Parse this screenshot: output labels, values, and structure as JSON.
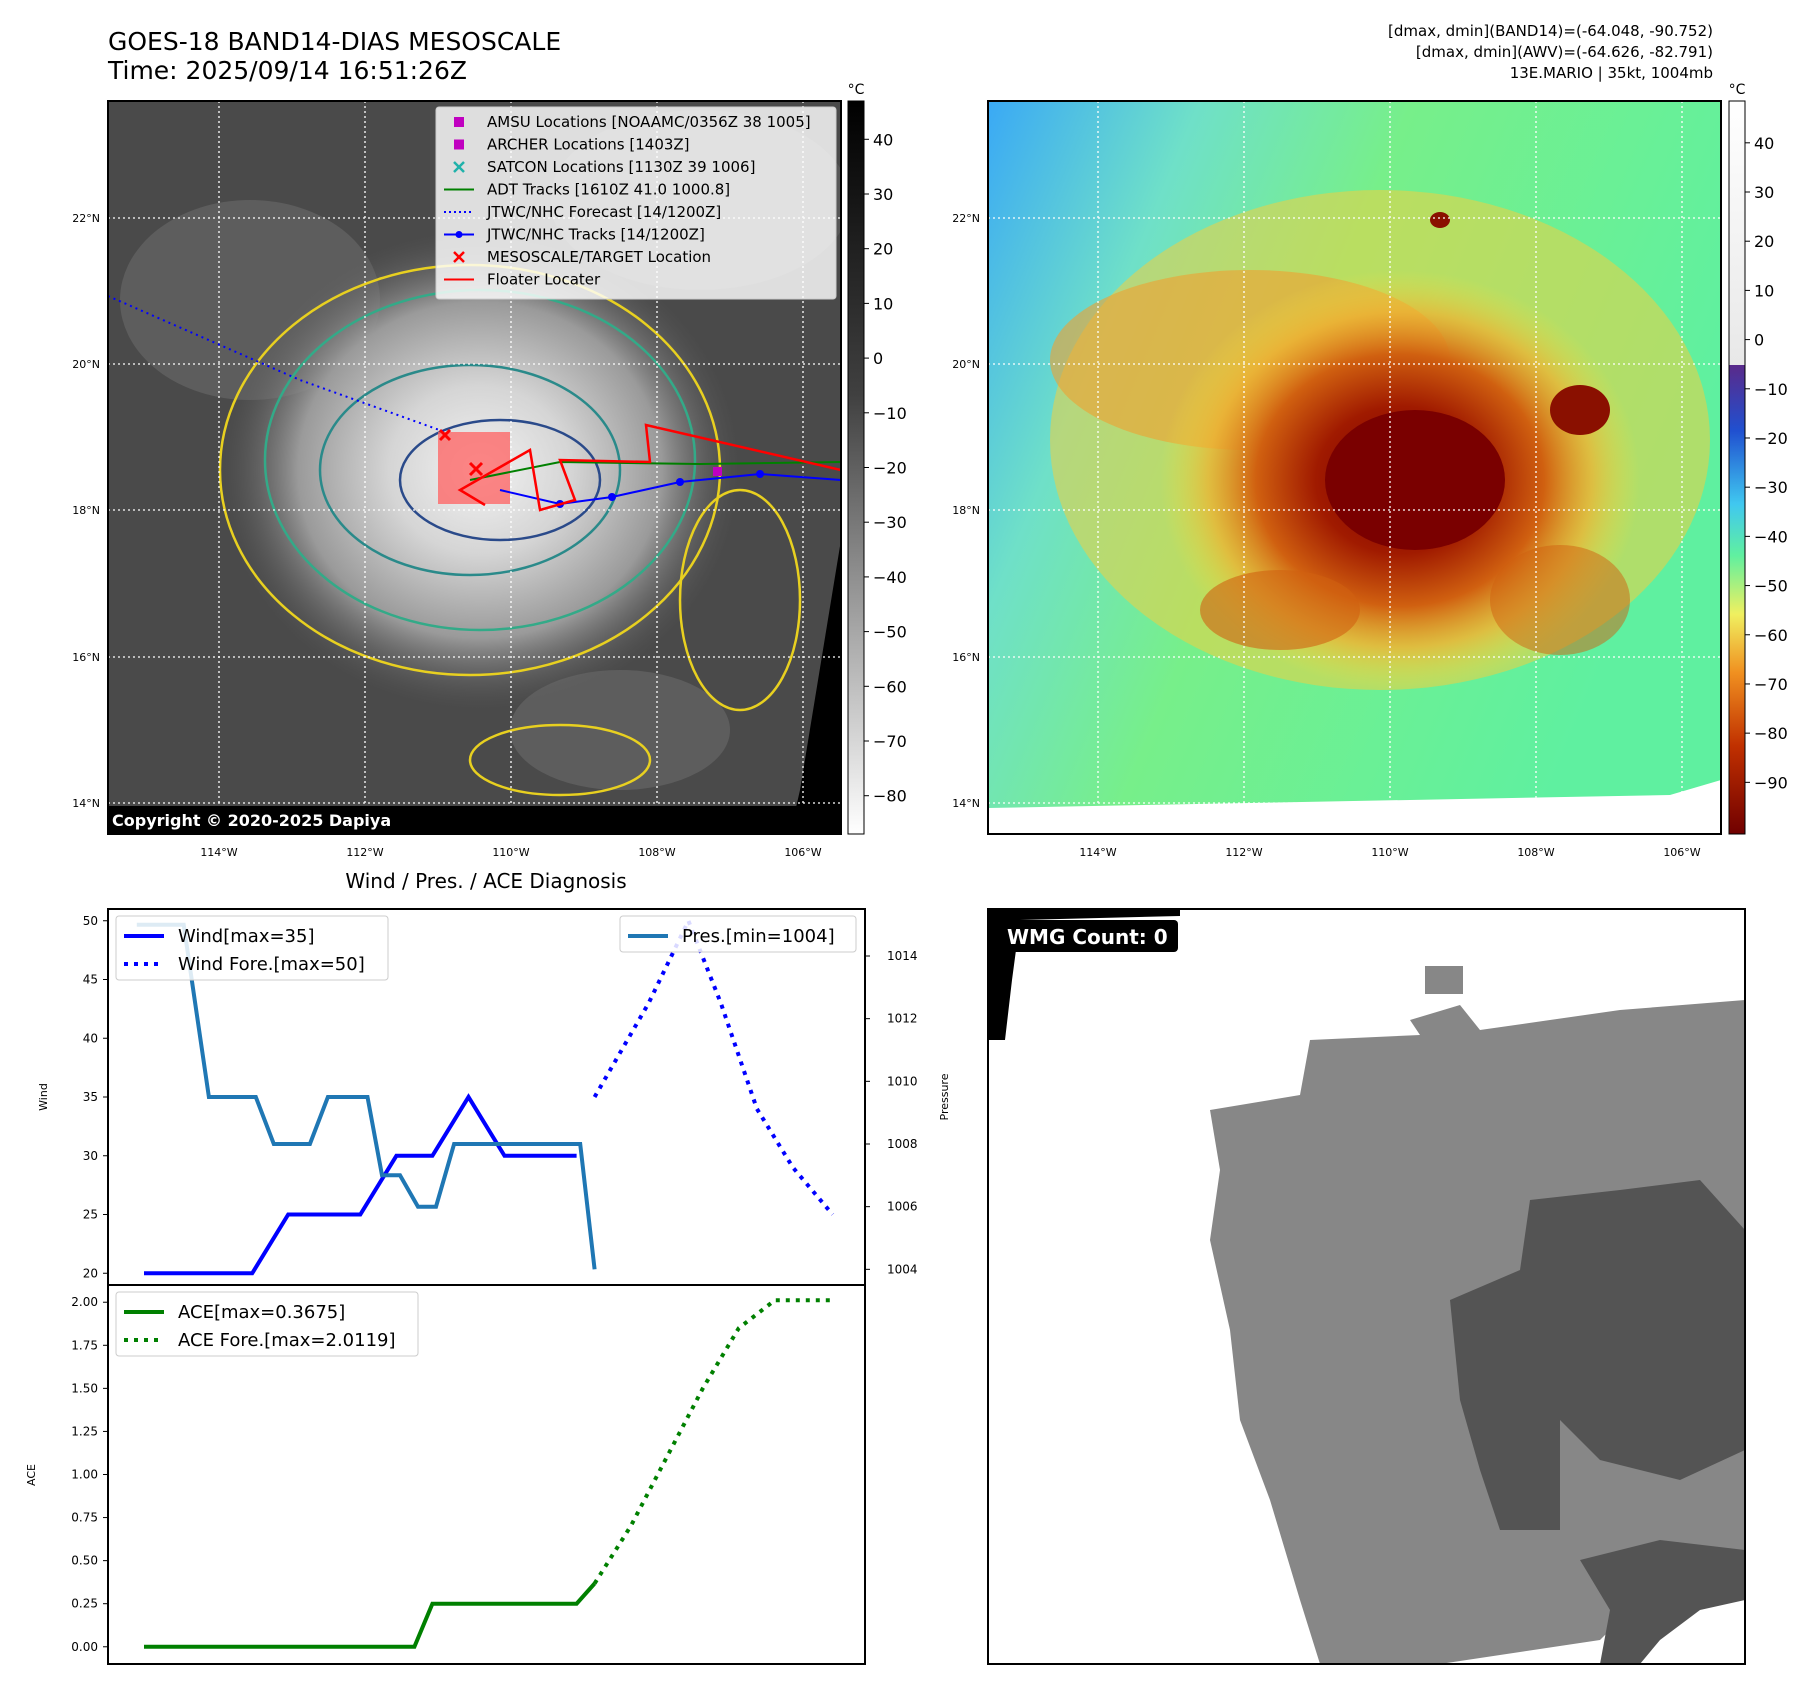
{
  "header": {
    "title": "GOES-18 BAND14-DIAS MESOSCALE",
    "time": "Time: 2025/09/14 16:51:26Z",
    "right_line1": "[dmax, dmin](BAND14)=(-64.048, -90.752)",
    "right_line2": "[dmax, dmin](AWV)=(-64.626, -82.791)",
    "right_line3": "13E.MARIO | 35kt, 1004mb"
  },
  "ir_map": {
    "lat_labels": [
      "22°N",
      "20°N",
      "18°N",
      "16°N",
      "14°N"
    ],
    "lon_labels": [
      "114°W",
      "112°W",
      "110°W",
      "108°W",
      "106°W"
    ],
    "copyright": "Copyright © 2020-2025 Dapiya",
    "legend": [
      {
        "label": "AMSU Locations [NOAAMC/0356Z 38 1005]",
        "marker": "square",
        "color": "#c000c0"
      },
      {
        "label": "ARCHER Locations [1403Z]",
        "marker": "square",
        "color": "#c000c0"
      },
      {
        "label": "SATCON Locations [1130Z 39 1006]",
        "marker": "x",
        "color": "#20b2aa"
      },
      {
        "label": "ADT Tracks [1610Z 41.0 1000.8]",
        "marker": "line",
        "color": "#008000"
      },
      {
        "label": "JTWC/NHC Forecast [14/1200Z]",
        "marker": "dotted",
        "color": "#0000ff"
      },
      {
        "label": "JTWC/NHC Tracks [14/1200Z]",
        "marker": "line-dot",
        "color": "#0000ff"
      },
      {
        "label": "MESOSCALE/TARGET Location",
        "marker": "x",
        "color": "#ff0000"
      },
      {
        "label": "Floater Locater",
        "marker": "line",
        "color": "#ff0000"
      }
    ],
    "colorbar": {
      "unit": "°C",
      "ticks": [
        40,
        30,
        20,
        10,
        0,
        -10,
        -20,
        -30,
        -40,
        -50,
        -60,
        -70,
        -80
      ]
    }
  },
  "awv_map": {
    "lat_labels": [
      "22°N",
      "20°N",
      "18°N",
      "16°N",
      "14°N"
    ],
    "lon_labels": [
      "114°W",
      "112°W",
      "110°W",
      "108°W",
      "106°W"
    ],
    "colorbar": {
      "unit": "°C",
      "ticks": [
        40,
        30,
        20,
        10,
        0,
        -10,
        -20,
        -30,
        -40,
        -50,
        -60,
        -70,
        -80,
        -90
      ]
    }
  },
  "chart_data": [
    {
      "type": "line",
      "title": "Wind / Pres. / ACE Diagnosis",
      "ylabel": "Wind",
      "y2label": "Pressure",
      "ylim": [
        19,
        51
      ],
      "y2lim": [
        1003.5,
        1015.5
      ],
      "yticks": [
        20,
        25,
        30,
        35,
        40,
        45,
        50
      ],
      "y2ticks": [
        1004,
        1006,
        1008,
        1010,
        1012,
        1014
      ],
      "series": [
        {
          "name": "Wind[max=35]",
          "style": "solid",
          "color": "#0000ff",
          "axis": "left",
          "x": [
            0,
            1,
            2,
            3,
            4,
            5,
            6,
            7,
            8,
            9,
            10,
            11,
            12
          ],
          "y": [
            20,
            20,
            20,
            20,
            25,
            25,
            25,
            30,
            30,
            35,
            30,
            30,
            30
          ]
        },
        {
          "name": "Wind Fore.[max=50]",
          "style": "dotted",
          "color": "#0000ff",
          "axis": "left",
          "x": [
            12.5,
            14,
            15.1,
            16,
            17,
            18,
            19.1
          ],
          "y": [
            35,
            43,
            50,
            43,
            34,
            29,
            25
          ]
        },
        {
          "name": "Pres.[min=1004]",
          "style": "solid",
          "color": "#1f77b4",
          "axis": "right",
          "x": [
            -0.2,
            0.6,
            1.1,
            1.8,
            2.5,
            3.1,
            3.6,
            4.1,
            4.6,
            5.1,
            5.6,
            6.2,
            6.6,
            7.1,
            7.6,
            8.1,
            8.6,
            9.1,
            9.6,
            10.1,
            10.6,
            11.6,
            12.1,
            12.5
          ],
          "y": [
            1015,
            1015,
            1015,
            1009.5,
            1009.5,
            1009.5,
            1008,
            1008,
            1008,
            1009.5,
            1009.5,
            1009.5,
            1007,
            1007,
            1006,
            1006,
            1008,
            1008,
            1008,
            1008,
            1008,
            1008,
            1008,
            1004
          ]
        }
      ]
    },
    {
      "type": "line",
      "ylabel": "ACE",
      "ylim": [
        -0.1,
        2.1
      ],
      "yticks": [
        "0.00",
        "0.25",
        "0.50",
        "0.75",
        "1.00",
        "1.25",
        "1.50",
        "1.75",
        "2.00"
      ],
      "series": [
        {
          "name": "ACE[max=0.3675]",
          "style": "solid",
          "color": "#008000",
          "x": [
            0,
            1,
            2,
            3,
            4,
            5,
            6,
            7,
            7.5,
            8,
            9,
            10,
            11,
            12,
            12.5
          ],
          "y": [
            0,
            0,
            0,
            0,
            0,
            0,
            0,
            0,
            0,
            0.25,
            0.25,
            0.25,
            0.25,
            0.25,
            0.3675
          ]
        },
        {
          "name": "ACE Fore.[max=2.0119]",
          "style": "dotted",
          "color": "#008000",
          "x": [
            12.5,
            13.5,
            14.5,
            15.5,
            16.5,
            17.5,
            18.5,
            19.1
          ],
          "y": [
            0.3675,
            0.7,
            1.1,
            1.5,
            1.85,
            2.0119,
            2.0119,
            2.0119
          ]
        }
      ]
    }
  ],
  "wmg": {
    "label": "WMG Count: 0"
  }
}
